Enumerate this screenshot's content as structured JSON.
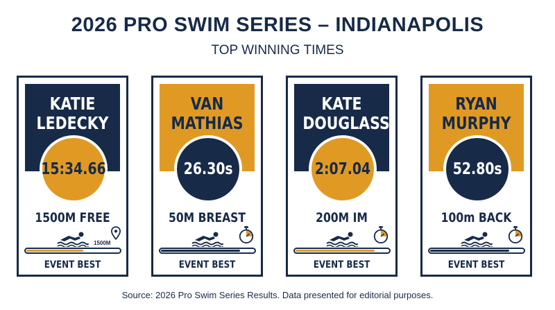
{
  "header": {
    "title": "2026 PRO SWIM SERIES – INDIANAPOLIS",
    "subtitle": "TOP WINNING TIMES"
  },
  "colors": {
    "navy": "#172a48",
    "gold": "#e09a24",
    "white": "#ffffff"
  },
  "cards": [
    {
      "name": "KATIE LEDECKY",
      "time": "15:34.66",
      "event": "1500M FREE",
      "distance_label": "1500M",
      "icon": "location-pin-icon",
      "footer": "EVENT BEST",
      "progress": 0.62,
      "banner_color": "#172a48",
      "circle_color": "#e09a24",
      "bar_color": "#e09a24"
    },
    {
      "name": "VAN MATHIAS",
      "time": "26.30s",
      "event": "50M BREAST",
      "icon": "stopwatch-icon",
      "footer": "EVENT BEST",
      "progress": 0.85,
      "banner_color": "#e09a24",
      "circle_color": "#172a48",
      "bar_color": "#172a48"
    },
    {
      "name": "KATE DOUGLASS",
      "time": "2:07.04",
      "event": "200M IM",
      "icon": "stopwatch-icon",
      "footer": "EVENT BEST",
      "progress": 0.85,
      "banner_color": "#172a48",
      "circle_color": "#e09a24",
      "bar_color": "#e09a24"
    },
    {
      "name": "RYAN MURPHY",
      "time": "52.80s",
      "event": "100m BACK",
      "icon": "stopwatch-icon",
      "footer": "EVENT BEST",
      "progress": 0.85,
      "banner_color": "#e09a24",
      "circle_color": "#172a48",
      "bar_color": "#172a48"
    }
  ],
  "footer": {
    "source": "Source: 2026 Pro Swim Series Results. Data presented for editorial purposes."
  }
}
